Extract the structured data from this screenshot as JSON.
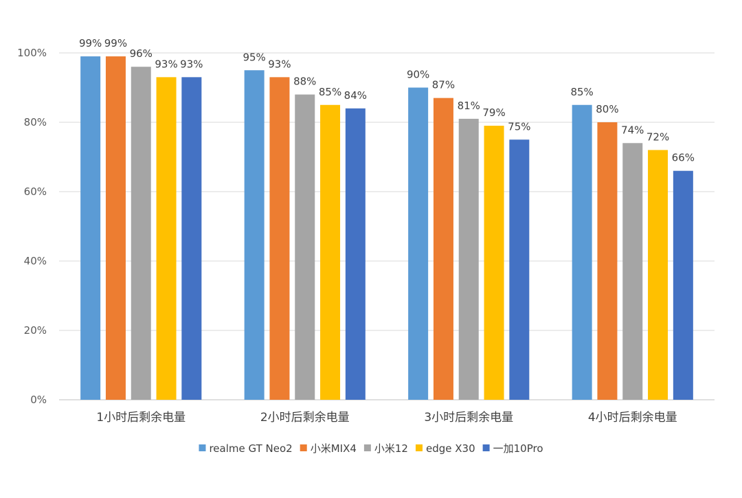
{
  "chart_data": {
    "type": "bar",
    "title": "",
    "xlabel": "",
    "ylabel": "",
    "ylim": [
      0,
      100
    ],
    "yticks": [
      0,
      20,
      40,
      60,
      80,
      100
    ],
    "ytick_labels": [
      "0%",
      "20%",
      "40%",
      "60%",
      "80%",
      "100%"
    ],
    "grid": true,
    "legend_position": "bottom",
    "categories": [
      "1小时后剩余电量",
      "2小时后剩余电量",
      "3小时后剩余电量",
      "4小时后剩余电量"
    ],
    "series": [
      {
        "name": "realme GT Neo2",
        "color": "#5B9BD5",
        "values": [
          99,
          95,
          90,
          85
        ],
        "labels": [
          "99%",
          "95%",
          "90%",
          "85%"
        ]
      },
      {
        "name": "小米MIX4",
        "color": "#ED7D31",
        "values": [
          99,
          93,
          87,
          80
        ],
        "labels": [
          "99%",
          "93%",
          "87%",
          "80%"
        ]
      },
      {
        "name": "小米12",
        "color": "#A5A5A5",
        "values": [
          96,
          88,
          81,
          74
        ],
        "labels": [
          "96%",
          "88%",
          "81%",
          "74%"
        ]
      },
      {
        "name": "edge X30",
        "color": "#FFC000",
        "values": [
          93,
          85,
          79,
          72
        ],
        "labels": [
          "93%",
          "85%",
          "79%",
          "72%"
        ]
      },
      {
        "name": "一加10Pro",
        "color": "#4472C4",
        "values": [
          93,
          84,
          75,
          66
        ],
        "labels": [
          "93%",
          "84%",
          "75%",
          "66%"
        ]
      }
    ]
  }
}
